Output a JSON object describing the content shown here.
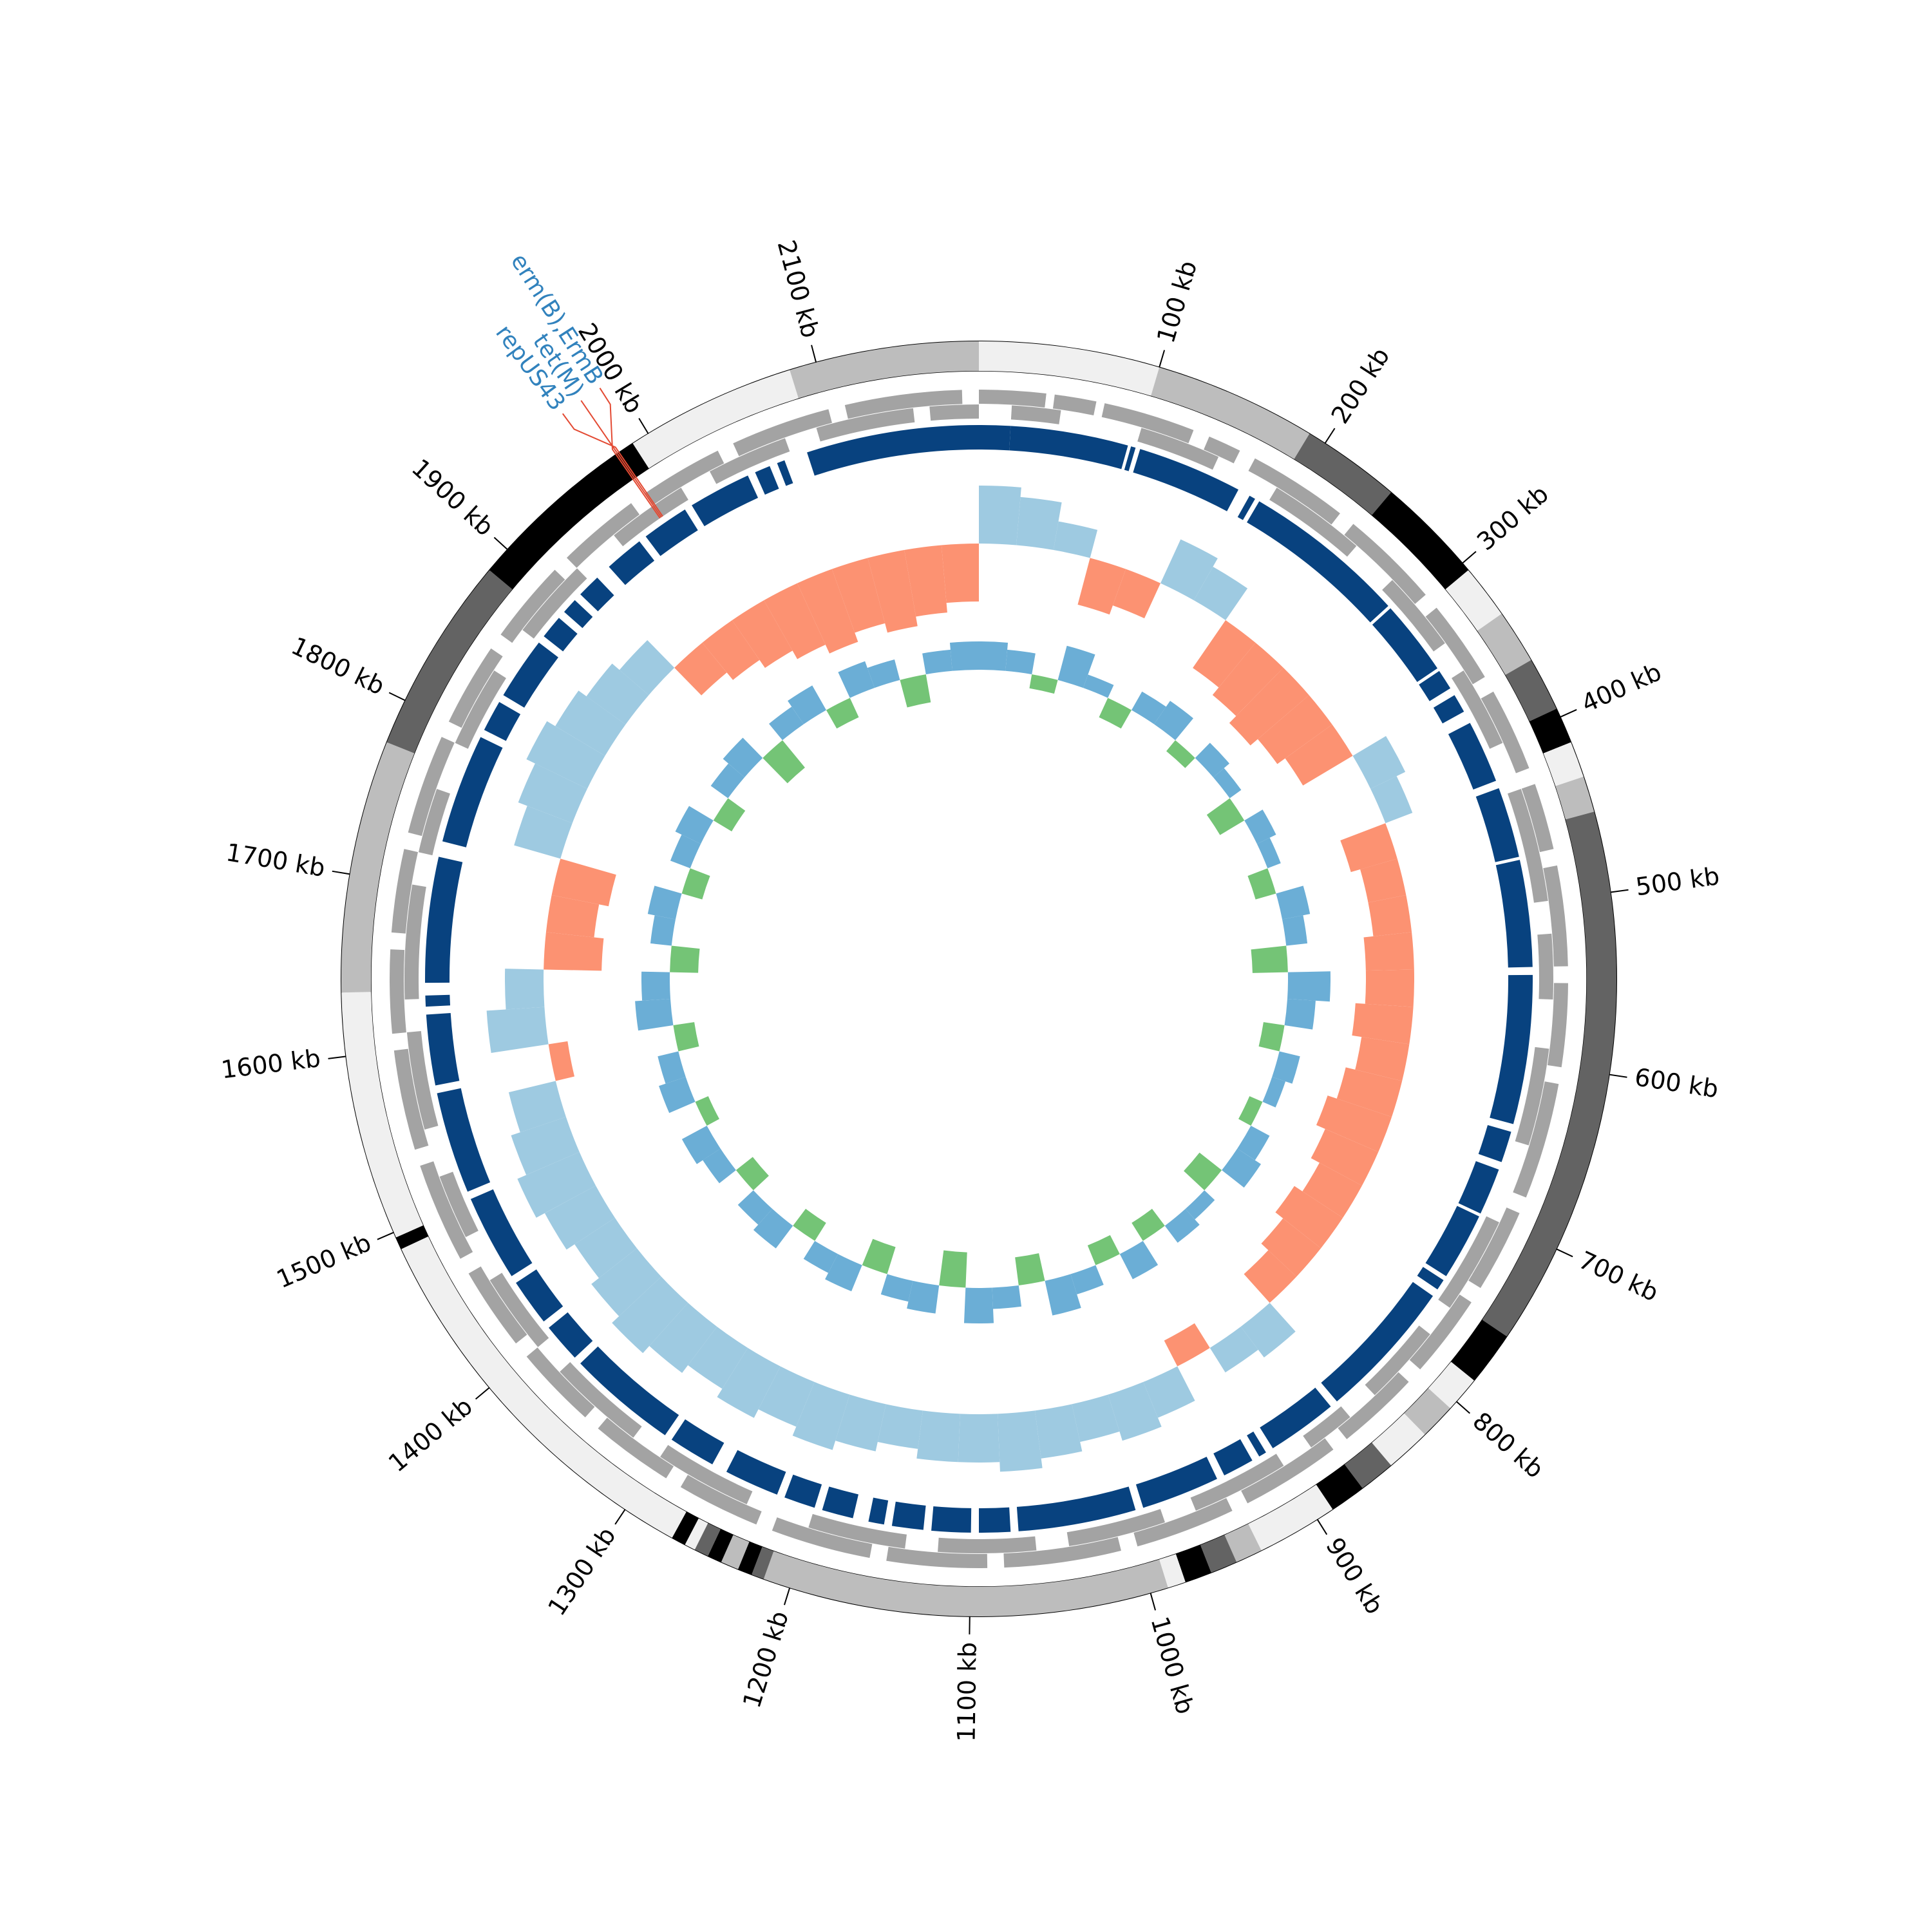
{
  "chart_data": {
    "type": "circular-genome",
    "xlim": [
      0,
      2190
    ],
    "xticks": [
      {
        "value": 100,
        "label": "100 kb"
      },
      {
        "value": 200,
        "label": "200 kb"
      },
      {
        "value": 300,
        "label": "300 kb"
      },
      {
        "value": 400,
        "label": "400 kb"
      },
      {
        "value": 500,
        "label": "500 kb"
      },
      {
        "value": 600,
        "label": "600 kb"
      },
      {
        "value": 700,
        "label": "700 kb"
      },
      {
        "value": 800,
        "label": "800 kb"
      },
      {
        "value": 900,
        "label": "900 kb"
      },
      {
        "value": 1000,
        "label": "1000 kb"
      },
      {
        "value": 1100,
        "label": "1100 kb"
      },
      {
        "value": 1200,
        "label": "1200 kb"
      },
      {
        "value": 1300,
        "label": "1300 kb"
      },
      {
        "value": 1400,
        "label": "1400 kb"
      },
      {
        "value": 1500,
        "label": "1500 kb"
      },
      {
        "value": 1600,
        "label": "1600 kb"
      },
      {
        "value": 1700,
        "label": "1700 kb"
      },
      {
        "value": 1800,
        "label": "1800 kb"
      },
      {
        "value": 1900,
        "label": "1900 kb"
      },
      {
        "value": 2000,
        "label": "2000 kb"
      },
      {
        "value": 2100,
        "label": "2100 kb"
      }
    ],
    "segments": [
      {
        "start": 0,
        "end": 100,
        "color": "#f0f0f0"
      },
      {
        "start": 100,
        "end": 190,
        "color": "#bdbdbd"
      },
      {
        "start": 190,
        "end": 245,
        "color": "#636363"
      },
      {
        "start": 245,
        "end": 305,
        "color": "#000000"
      },
      {
        "start": 305,
        "end": 335,
        "color": "#f0f0f0"
      },
      {
        "start": 335,
        "end": 365,
        "color": "#bdbdbd"
      },
      {
        "start": 365,
        "end": 395,
        "color": "#636363"
      },
      {
        "start": 395,
        "end": 415,
        "color": "#000000"
      },
      {
        "start": 415,
        "end": 435,
        "color": "#f0f0f0"
      },
      {
        "start": 435,
        "end": 455,
        "color": "#bdbdbd"
      },
      {
        "start": 455,
        "end": 755,
        "color": "#636363"
      },
      {
        "start": 755,
        "end": 785,
        "color": "#000000"
      },
      {
        "start": 785,
        "end": 805,
        "color": "#f0f0f0"
      },
      {
        "start": 805,
        "end": 825,
        "color": "#bdbdbd"
      },
      {
        "start": 825,
        "end": 850,
        "color": "#f0f0f0"
      },
      {
        "start": 850,
        "end": 870,
        "color": "#636363"
      },
      {
        "start": 870,
        "end": 890,
        "color": "#000000"
      },
      {
        "start": 890,
        "end": 935,
        "color": "#f0f0f0"
      },
      {
        "start": 935,
        "end": 950,
        "color": "#bdbdbd"
      },
      {
        "start": 950,
        "end": 965,
        "color": "#636363"
      },
      {
        "start": 965,
        "end": 980,
        "color": "#000000"
      },
      {
        "start": 980,
        "end": 990,
        "color": "#f0f0f0"
      },
      {
        "start": 990,
        "end": 1215,
        "color": "#bdbdbd"
      },
      {
        "start": 1215,
        "end": 1222,
        "color": "#636363"
      },
      {
        "start": 1222,
        "end": 1230,
        "color": "#000000"
      },
      {
        "start": 1230,
        "end": 1240,
        "color": "#bdbdbd"
      },
      {
        "start": 1240,
        "end": 1248,
        "color": "#000000"
      },
      {
        "start": 1248,
        "end": 1256,
        "color": "#636363"
      },
      {
        "start": 1256,
        "end": 1262,
        "color": "#f0f0f0"
      },
      {
        "start": 1262,
        "end": 1270,
        "color": "#000000"
      },
      {
        "start": 1270,
        "end": 1490,
        "color": "#f0f0f0"
      },
      {
        "start": 1490,
        "end": 1497,
        "color": "#000000"
      },
      {
        "start": 1497,
        "end": 1635,
        "color": "#f0f0f0"
      },
      {
        "start": 1635,
        "end": 1775,
        "color": "#bdbdbd"
      },
      {
        "start": 1775,
        "end": 1885,
        "color": "#636363"
      },
      {
        "start": 1885,
        "end": 1990,
        "color": "#000000"
      },
      {
        "start": 1990,
        "end": 2085,
        "color": "#f0f0f0"
      },
      {
        "start": 2085,
        "end": 2190,
        "color": "#bdbdbd"
      }
    ],
    "genes": {
      "color": "#a3a3a3",
      "forward": [
        [
          0,
          40
        ],
        [
          45,
          70
        ],
        [
          75,
          130
        ],
        [
          140,
          160
        ],
        [
          170,
          230
        ],
        [
          240,
          300
        ],
        [
          310,
          360
        ],
        [
          370,
          420
        ],
        [
          430,
          470
        ],
        [
          480,
          540
        ],
        [
          550,
          600
        ],
        [
          610,
          680
        ],
        [
          690,
          740
        ],
        [
          750,
          800
        ],
        [
          810,
          860
        ],
        [
          870,
          930
        ],
        [
          940,
          1000
        ],
        [
          1010,
          1080
        ],
        [
          1090,
          1150
        ],
        [
          1160,
          1220
        ],
        [
          1230,
          1280
        ],
        [
          1290,
          1340
        ],
        [
          1350,
          1400
        ],
        [
          1410,
          1460
        ],
        [
          1470,
          1530
        ],
        [
          1540,
          1600
        ],
        [
          1610,
          1660
        ],
        [
          1670,
          1720
        ],
        [
          1730,
          1790
        ],
        [
          1800,
          1850
        ],
        [
          1860,
          1910
        ],
        [
          1920,
          1970
        ],
        [
          1980,
          2030
        ],
        [
          2040,
          2100
        ],
        [
          2110,
          2180
        ]
      ],
      "reverse": [
        [
          20,
          50
        ],
        [
          100,
          150
        ],
        [
          190,
          250
        ],
        [
          280,
          330
        ],
        [
          350,
          400
        ],
        [
          430,
          500
        ],
        [
          520,
          560
        ],
        [
          590,
          650
        ],
        [
          700,
          760
        ],
        [
          780,
          830
        ],
        [
          850,
          880
        ],
        [
          900,
          960
        ],
        [
          980,
          1040
        ],
        [
          1060,
          1120
        ],
        [
          1140,
          1200
        ],
        [
          1240,
          1300
        ],
        [
          1320,
          1380
        ],
        [
          1400,
          1450
        ],
        [
          1480,
          1520
        ],
        [
          1550,
          1610
        ],
        [
          1630,
          1700
        ],
        [
          1720,
          1760
        ],
        [
          1790,
          1840
        ],
        [
          1870,
          1920
        ],
        [
          1950,
          2000
        ],
        [
          2020,
          2070
        ],
        [
          2090,
          2150
        ],
        [
          2160,
          2190
        ]
      ]
    },
    "hits": {
      "color": "#08427f",
      "ranges": [
        [
          0,
          20
        ],
        [
          20,
          95
        ],
        [
          97,
          100
        ],
        [
          103,
          170
        ],
        [
          178,
          182
        ],
        [
          185,
          290
        ],
        [
          292,
          340
        ],
        [
          342,
          355
        ],
        [
          360,
          372
        ],
        [
          380,
          420
        ],
        [
          425,
          470
        ],
        [
          472,
          540
        ],
        [
          545,
          640
        ],
        [
          645,
          665
        ],
        [
          670,
          700
        ],
        [
          702,
          745
        ],
        [
          748,
          755
        ],
        [
          760,
          850
        ],
        [
          855,
          900
        ],
        [
          905,
          910
        ],
        [
          915,
          935
        ],
        [
          940,
          990
        ],
        [
          995,
          1070
        ],
        [
          1075,
          1095
        ],
        [
          1100,
          1125
        ],
        [
          1130,
          1150
        ],
        [
          1155,
          1165
        ],
        [
          1175,
          1195
        ],
        [
          1200,
          1220
        ],
        [
          1225,
          1260
        ],
        [
          1270,
          1300
        ],
        [
          1305,
          1375
        ],
        [
          1380,
          1405
        ],
        [
          1410,
          1440
        ],
        [
          1445,
          1500
        ],
        [
          1505,
          1570
        ],
        [
          1575,
          1620
        ],
        [
          1625,
          1632
        ],
        [
          1640,
          1720
        ],
        [
          1730,
          1800
        ],
        [
          1805,
          1825
        ],
        [
          1830,
          1870
        ],
        [
          1875,
          1890
        ],
        [
          1895,
          1905
        ],
        [
          1910,
          1925
        ],
        [
          1935,
          1960
        ],
        [
          1965,
          1995
        ],
        [
          2000,
          2040
        ],
        [
          2045,
          2055
        ],
        [
          2060,
          2065
        ],
        [
          2080,
          2190
        ]
      ]
    },
    "gc_skew": {
      "ylim": [
        -1,
        1
      ],
      "colors": [
        "#fc9272",
        "#9ecae1"
      ],
      "x": [
        0,
        30,
        60,
        90,
        120,
        150,
        180,
        210,
        240,
        270,
        300,
        330,
        360,
        390,
        420,
        450,
        480,
        510,
        540,
        570,
        600,
        630,
        660,
        690,
        720,
        750,
        780,
        810,
        840,
        870,
        900,
        930,
        960,
        990,
        1020,
        1050,
        1080,
        1110,
        1140,
        1170,
        1200,
        1230,
        1260,
        1290,
        1320,
        1350,
        1380,
        1410,
        1440,
        1470,
        1500,
        1530,
        1560,
        1590,
        1620,
        1650,
        1680,
        1710,
        1740,
        1770,
        1800,
        1830,
        1860,
        1890,
        1920,
        1950,
        1980,
        2010,
        2040,
        2070,
        2100,
        2130,
        2160
      ],
      "values": [
        0.6,
        0.5,
        0.3,
        -0.5,
        -0.4,
        0.5,
        0.4,
        -0.6,
        -0.7,
        -0.8,
        -0.7,
        -0.6,
        0.4,
        0.3,
        -0.5,
        -0.4,
        -0.4,
        -0.5,
        -0.5,
        -0.6,
        -0.5,
        -0.6,
        -0.7,
        -0.6,
        -0.5,
        -0.6,
        -0.5,
        -0.4,
        0.4,
        0.3,
        -0.3,
        0.4,
        0.5,
        0.4,
        0.5,
        0.6,
        0.5,
        0.5,
        0.4,
        0.5,
        0.6,
        0.5,
        0.6,
        0.5,
        0.6,
        0.7,
        0.6,
        0.5,
        0.6,
        0.7,
        0.6,
        0.5,
        -0.2,
        0.6,
        0.4,
        -0.6,
        -0.5,
        -0.6,
        0.5,
        0.6,
        0.7,
        0.6,
        0.5,
        0.4,
        -0.4,
        -0.5,
        -0.6,
        -0.7,
        -0.8,
        -0.7,
        -0.8,
        -0.7,
        -0.6
      ]
    },
    "gc_content": {
      "ylim": [
        -1,
        1
      ],
      "colors": [
        "#74c476",
        "#6baed6"
      ],
      "x": [
        0,
        30,
        60,
        90,
        120,
        150,
        180,
        210,
        240,
        270,
        300,
        330,
        360,
        390,
        420,
        450,
        480,
        510,
        540,
        570,
        600,
        630,
        660,
        690,
        720,
        750,
        780,
        810,
        840,
        870,
        900,
        930,
        960,
        990,
        1020,
        1050,
        1080,
        1110,
        1140,
        1170,
        1200,
        1230,
        1260,
        1290,
        1320,
        1350,
        1380,
        1410,
        1440,
        1470,
        1500,
        1530,
        1560,
        1590,
        1620,
        1650,
        1680,
        1710,
        1740,
        1770,
        1800,
        1830,
        1860,
        1890,
        1920,
        1950,
        1980,
        2010,
        2040,
        2070,
        2100,
        2130,
        2160
      ],
      "values": [
        0.4,
        0.3,
        -0.2,
        0.5,
        0.2,
        -0.3,
        0.3,
        0.4,
        -0.2,
        0.3,
        0.2,
        -0.4,
        0.3,
        0.2,
        -0.3,
        0.4,
        0.3,
        -0.5,
        0.6,
        0.4,
        -0.3,
        0.3,
        0.2,
        -0.2,
        0.3,
        0.4,
        -0.4,
        0.2,
        0.3,
        -0.3,
        0.4,
        -0.3,
        0.3,
        0.5,
        -0.4,
        0.3,
        0.5,
        -0.5,
        0.4,
        0.3,
        -0.4,
        0.4,
        0.3,
        -0.3,
        0.4,
        0.3,
        -0.3,
        0.3,
        0.4,
        -0.2,
        0.4,
        0.3,
        -0.3,
        0.5,
        0.4,
        -0.4,
        0.3,
        0.4,
        -0.3,
        0.3,
        0.4,
        -0.3,
        0.3,
        0.4,
        -0.5,
        0.3,
        0.4,
        -0.3,
        0.4,
        0.3,
        -0.4,
        0.3,
        0.4
      ]
    },
    "annotations": {
      "color": "#3182bd",
      "line_color": "#e34a33",
      "items": [
        {
          "label": "erm(B),ErmB",
          "position": 1979
        },
        {
          "label": "tet(M)",
          "position": 1980
        },
        {
          "label": "repUS43",
          "position": 1981
        }
      ]
    }
  }
}
